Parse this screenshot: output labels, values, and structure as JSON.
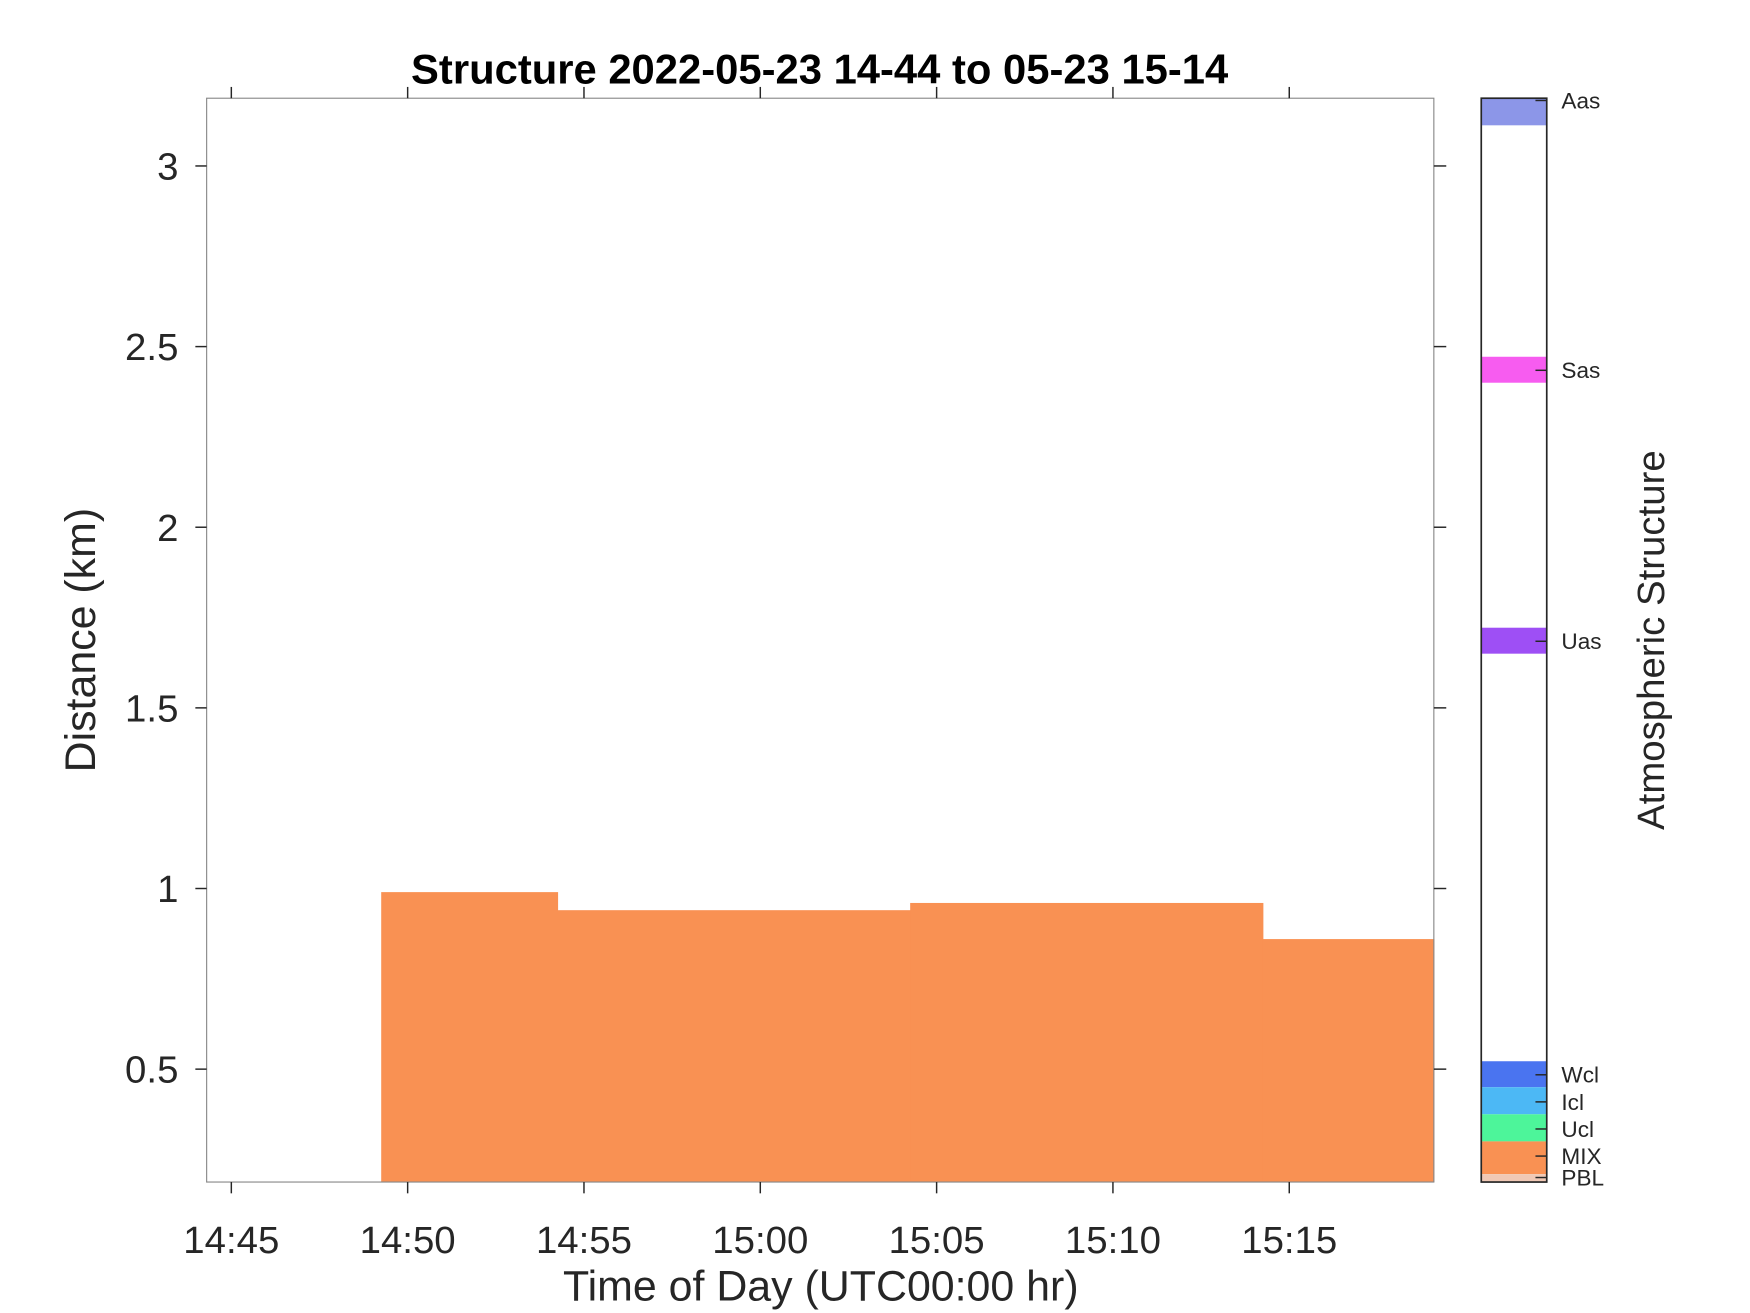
{
  "chart_data": {
    "type": "area",
    "title": "Structure 2022-05-23 14-44 to 05-23 15-14",
    "xlabel": "Time of Day (UTC00:00 hr)",
    "ylabel": "Distance (km)",
    "xlim": [
      "14:44:18",
      "15:19:06"
    ],
    "ylim": [
      0.1875,
      3.1875
    ],
    "x_ticks": [
      "14:45",
      "14:50",
      "14:55",
      "15:00",
      "15:05",
      "15:10",
      "15:15"
    ],
    "y_ticks": [
      "0.5",
      "1",
      "1.5",
      "2",
      "2.5",
      "3"
    ],
    "grid": false,
    "series": [
      {
        "category": "MIX",
        "color": "#f99153",
        "segments": [
          {
            "start": "14:49:15",
            "end": "14:54:15",
            "top_km": 0.99
          },
          {
            "start": "14:54:15",
            "end": "15:04:15",
            "top_km": 0.94
          },
          {
            "start": "15:04:15",
            "end": "15:14:15",
            "top_km": 0.96
          },
          {
            "start": "15:14:15",
            "end": "15:19:06",
            "top_km": 0.86
          }
        ]
      }
    ],
    "colorbar": {
      "label": "Atmospheric Structure",
      "entries": [
        {
          "label": "Aas",
          "color": "#8c96e8"
        },
        {
          "label": "Sas",
          "color": "#f75cf0"
        },
        {
          "label": "Uas",
          "color": "#9e4ff5"
        },
        {
          "label": "Wcl",
          "color": "#4a74f0"
        },
        {
          "label": "Icl",
          "color": "#4cb8f5"
        },
        {
          "label": "Ucl",
          "color": "#4df59a"
        },
        {
          "label": "MIX",
          "color": "#f99153"
        },
        {
          "label": "PBL",
          "color": "#f0c8b5"
        }
      ]
    }
  }
}
